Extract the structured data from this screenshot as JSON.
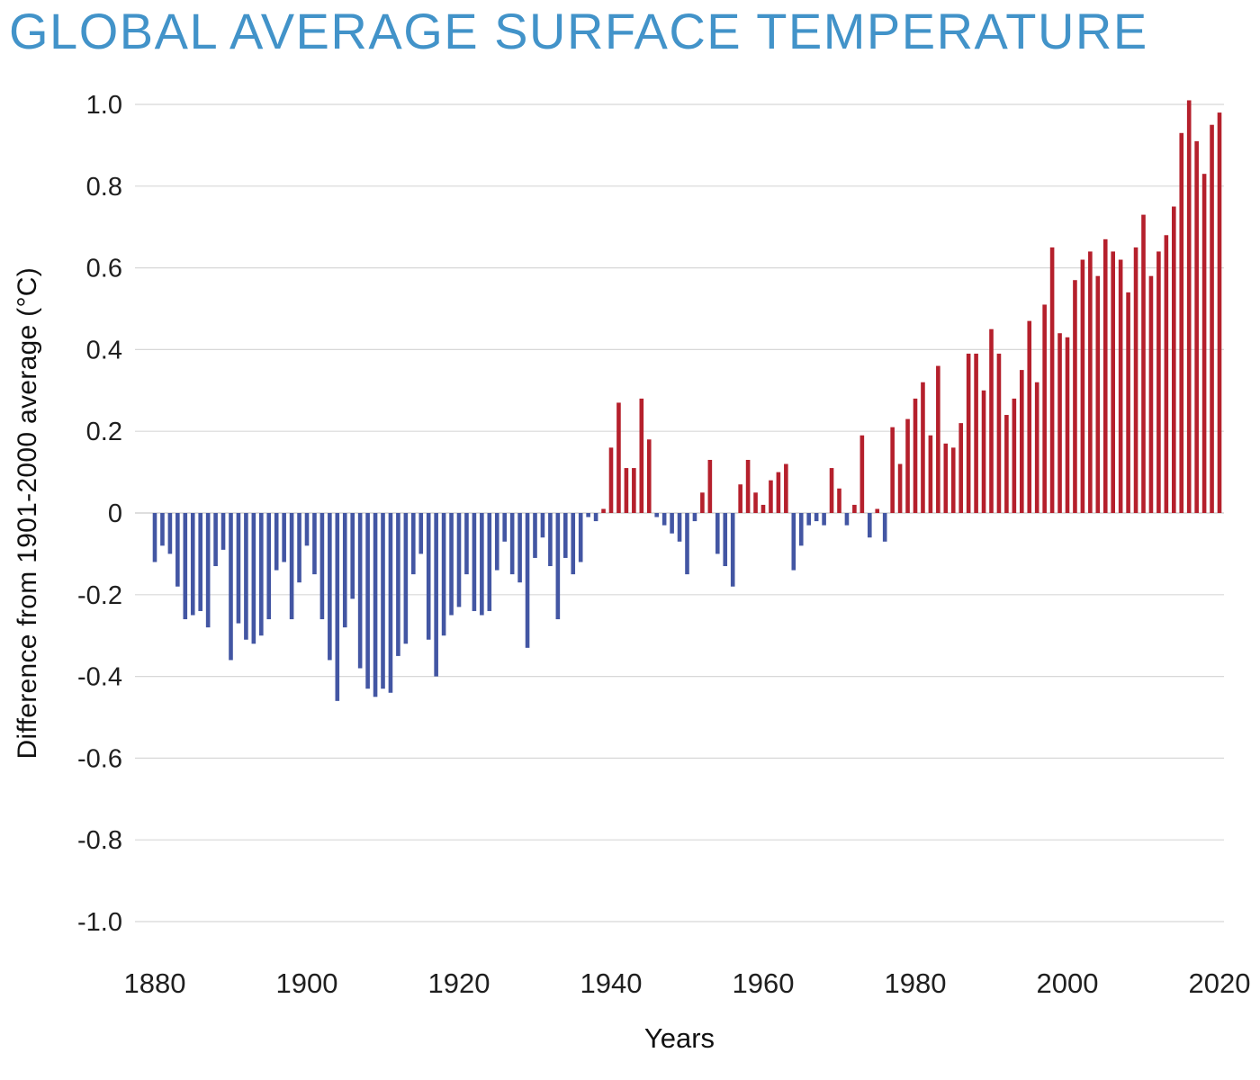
{
  "title": "GLOBAL AVERAGE SURFACE TEMPERATURE",
  "styles": {
    "title_color": "#4293c9",
    "background": "#ffffff",
    "tick_text_color": "#1f1f1f"
  },
  "chart_data": {
    "type": "bar",
    "title": "GLOBAL AVERAGE SURFACE TEMPERATURE",
    "xlabel": "Years",
    "ylabel": "Difference from 1901-2000 average (°C)",
    "ylim": [
      -1.0,
      1.0
    ],
    "grid": true,
    "legend": "none",
    "xticks": [
      1880,
      1900,
      1920,
      1940,
      1960,
      1980,
      2000,
      2020
    ],
    "ytick_values": [
      1.0,
      0.8,
      0.6,
      0.4,
      0.2,
      0,
      -0.2,
      -0.4,
      -0.6,
      -0.8,
      -1.0
    ],
    "ytick_labels": [
      "1.0",
      "0.8",
      "0.6",
      "0.4",
      "0.2",
      "0",
      "-0.2",
      "-0.4",
      "-0.6",
      "-0.8",
      "-1.0"
    ],
    "colors": {
      "positive": "#b5202c",
      "negative": "#4356a3",
      "gridline": "#d8d8d8",
      "zero_line": "#c9c9c9"
    },
    "years": [
      1880,
      1881,
      1882,
      1883,
      1884,
      1885,
      1886,
      1887,
      1888,
      1889,
      1890,
      1891,
      1892,
      1893,
      1894,
      1895,
      1896,
      1897,
      1898,
      1899,
      1900,
      1901,
      1902,
      1903,
      1904,
      1905,
      1906,
      1907,
      1908,
      1909,
      1910,
      1911,
      1912,
      1913,
      1914,
      1915,
      1916,
      1917,
      1918,
      1919,
      1920,
      1921,
      1922,
      1923,
      1924,
      1925,
      1926,
      1927,
      1928,
      1929,
      1930,
      1931,
      1932,
      1933,
      1934,
      1935,
      1936,
      1937,
      1938,
      1939,
      1940,
      1941,
      1942,
      1943,
      1944,
      1945,
      1946,
      1947,
      1948,
      1949,
      1950,
      1951,
      1952,
      1953,
      1954,
      1955,
      1956,
      1957,
      1958,
      1959,
      1960,
      1961,
      1962,
      1963,
      1964,
      1965,
      1966,
      1967,
      1968,
      1969,
      1970,
      1971,
      1972,
      1973,
      1974,
      1975,
      1976,
      1977,
      1978,
      1979,
      1980,
      1981,
      1982,
      1983,
      1984,
      1985,
      1986,
      1987,
      1988,
      1989,
      1990,
      1991,
      1992,
      1993,
      1994,
      1995,
      1996,
      1997,
      1998,
      1999,
      2000,
      2001,
      2002,
      2003,
      2004,
      2005,
      2006,
      2007,
      2008,
      2009,
      2010,
      2011,
      2012,
      2013,
      2014,
      2015,
      2016,
      2017,
      2018,
      2019,
      2020
    ],
    "values": [
      -0.12,
      -0.08,
      -0.1,
      -0.18,
      -0.26,
      -0.25,
      -0.24,
      -0.28,
      -0.13,
      -0.09,
      -0.36,
      -0.27,
      -0.31,
      -0.32,
      -0.3,
      -0.26,
      -0.14,
      -0.12,
      -0.26,
      -0.17,
      -0.08,
      -0.15,
      -0.26,
      -0.36,
      -0.46,
      -0.28,
      -0.21,
      -0.38,
      -0.43,
      -0.45,
      -0.43,
      -0.44,
      -0.35,
      -0.32,
      -0.15,
      -0.1,
      -0.31,
      -0.4,
      -0.3,
      -0.25,
      -0.23,
      -0.15,
      -0.24,
      -0.25,
      -0.24,
      -0.14,
      -0.07,
      -0.15,
      -0.17,
      -0.33,
      -0.11,
      -0.06,
      -0.13,
      -0.26,
      -0.11,
      -0.15,
      -0.12,
      -0.01,
      -0.02,
      0.01,
      0.16,
      0.27,
      0.11,
      0.11,
      0.28,
      0.18,
      -0.01,
      -0.03,
      -0.05,
      -0.07,
      -0.15,
      -0.02,
      0.05,
      0.13,
      -0.1,
      -0.13,
      -0.18,
      0.07,
      0.13,
      0.05,
      0.02,
      0.08,
      0.1,
      0.12,
      -0.14,
      -0.08,
      -0.03,
      -0.02,
      -0.03,
      0.11,
      0.06,
      -0.03,
      0.02,
      0.19,
      -0.06,
      0.01,
      -0.07,
      0.21,
      0.12,
      0.23,
      0.28,
      0.32,
      0.19,
      0.36,
      0.17,
      0.16,
      0.22,
      0.39,
      0.39,
      0.3,
      0.45,
      0.39,
      0.24,
      0.28,
      0.35,
      0.47,
      0.32,
      0.51,
      0.65,
      0.44,
      0.43,
      0.57,
      0.62,
      0.64,
      0.58,
      0.67,
      0.64,
      0.62,
      0.54,
      0.65,
      0.73,
      0.58,
      0.64,
      0.68,
      0.75,
      0.93,
      1.01,
      0.91,
      0.83,
      0.95,
      0.98
    ]
  }
}
